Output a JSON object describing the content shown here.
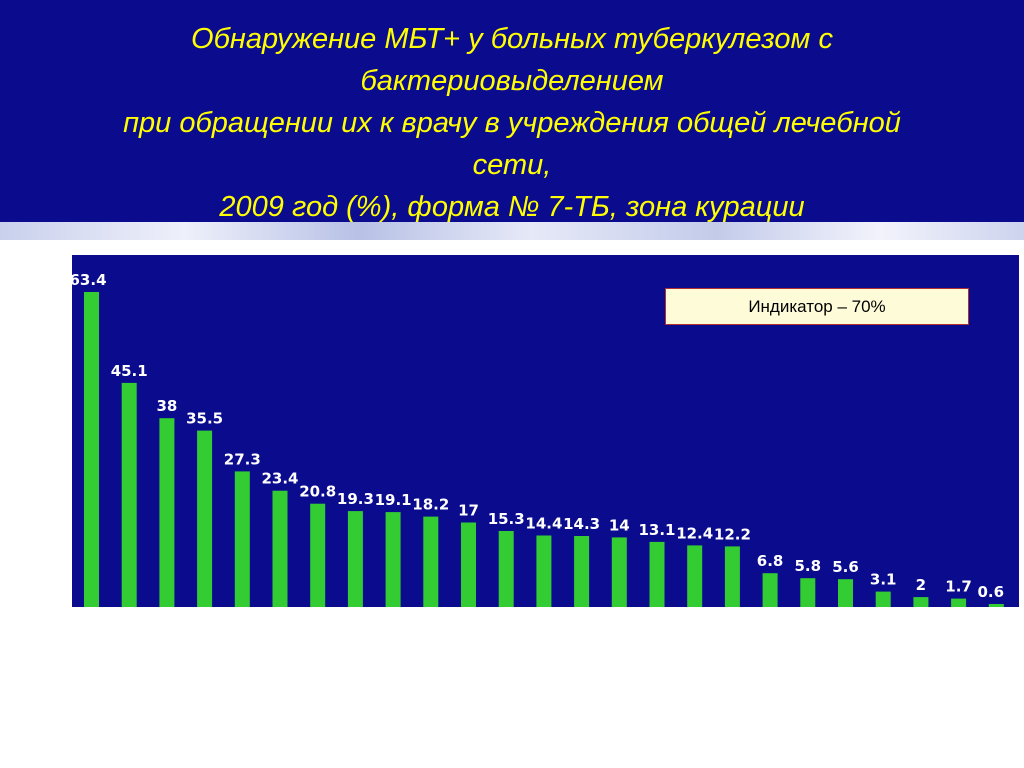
{
  "title": {
    "lines": [
      "Обнаружение МБТ+ у больных туберкулезом с",
      "бактериовыделением",
      "при обращении их к врачу в учреждения общей лечебной",
      "сети,",
      "2009 год (%), форма № 7-ТБ, зона курации"
    ]
  },
  "indicator": {
    "label": "Индикатор – 70%"
  },
  "colors": {
    "header_bg": "#0b0b8e",
    "plot_bg": "#0b0b8e",
    "bar": "#33cc33",
    "title_text": "#ffff00",
    "value_label": "#ffffff"
  },
  "chart_data": {
    "type": "bar",
    "title": "",
    "xlabel": "",
    "ylabel": "",
    "ylim": [
      0,
      70
    ],
    "grid": false,
    "categories": [
      "",
      "",
      "",
      "",
      "",
      "",
      "",
      "",
      "",
      "",
      "",
      "",
      "",
      "",
      "",
      "",
      "",
      "",
      "",
      "",
      "",
      "",
      "",
      "",
      ""
    ],
    "values": [
      63.4,
      45.1,
      38,
      35.5,
      27.3,
      23.4,
      20.8,
      19.3,
      19.1,
      18.2,
      17,
      15.3,
      14.4,
      14.3,
      14,
      13.1,
      12.4,
      12.2,
      6.8,
      5.8,
      5.6,
      3.1,
      2,
      1.7,
      0.6
    ],
    "labels": [
      "63.4",
      "45.1",
      "38",
      "35.5",
      "27.3",
      "23.4",
      "20.8",
      "19.3",
      "19.1",
      "18.2",
      "17",
      "15.3",
      "14.4",
      "14.3",
      "14",
      "13.1",
      "12.4",
      "12.2",
      "6.8",
      "5.8",
      "5.6",
      "3.1",
      "2",
      "1.7",
      "0.6"
    ]
  }
}
